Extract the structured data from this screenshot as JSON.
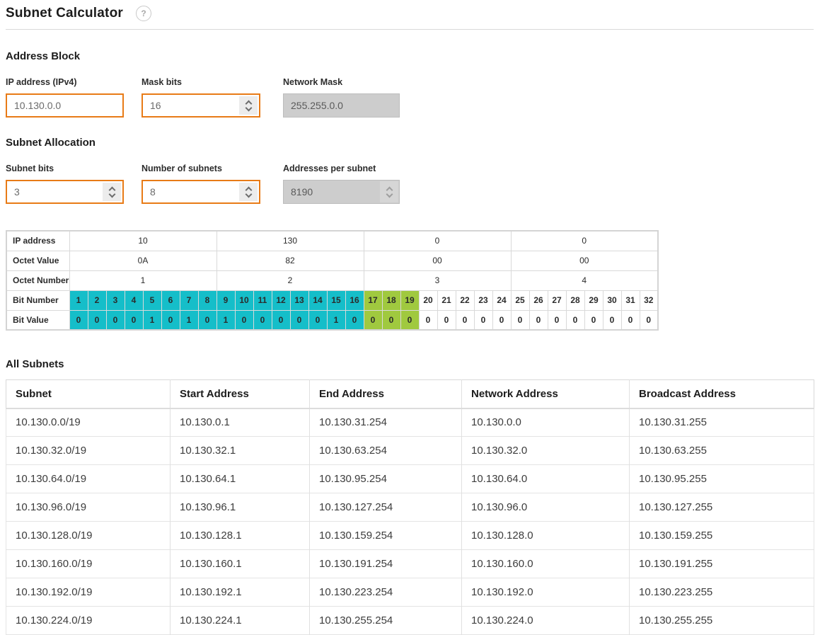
{
  "header": {
    "title": "Subnet Calculator",
    "help_label": "?"
  },
  "colors": {
    "accent_orange": "#e87b17",
    "network_bit_color": "#15bec9",
    "subnet_bit_color": "#a0c93f",
    "disabled_bg": "#cdcdcd"
  },
  "address_block": {
    "heading": "Address Block",
    "ip_field": {
      "label": "IP address (IPv4)",
      "value": "10.130.0.0",
      "disabled": false,
      "spinner": false
    },
    "mask_field": {
      "label": "Mask bits",
      "value": "16",
      "disabled": false,
      "spinner": true
    },
    "netmask_field": {
      "label": "Network Mask",
      "value": "255.255.0.0",
      "disabled": true,
      "spinner": false
    }
  },
  "subnet_allocation": {
    "heading": "Subnet Allocation",
    "subnet_bits_field": {
      "label": "Subnet bits",
      "value": "3",
      "disabled": false,
      "spinner": true
    },
    "num_subnets_field": {
      "label": "Number of subnets",
      "value": "8",
      "disabled": false,
      "spinner": true
    },
    "addresses_field": {
      "label": "Addresses per subnet",
      "value": "8190",
      "disabled": true,
      "spinner": true
    }
  },
  "bit_table": {
    "row_labels": [
      "IP address",
      "Octet Value",
      "Octet Number",
      "Bit Number",
      "Bit Value"
    ],
    "octet_decimal": [
      "10",
      "130",
      "0",
      "0"
    ],
    "octet_hex": [
      "0A",
      "82",
      "00",
      "00"
    ],
    "octet_numbers": [
      "1",
      "2",
      "3",
      "4"
    ],
    "bit_numbers": [
      1,
      2,
      3,
      4,
      5,
      6,
      7,
      8,
      9,
      10,
      11,
      12,
      13,
      14,
      15,
      16,
      17,
      18,
      19,
      20,
      21,
      22,
      23,
      24,
      25,
      26,
      27,
      28,
      29,
      30,
      31,
      32
    ],
    "bit_values": [
      0,
      0,
      0,
      0,
      1,
      0,
      1,
      0,
      1,
      0,
      0,
      0,
      0,
      0,
      1,
      0,
      0,
      0,
      0,
      0,
      0,
      0,
      0,
      0,
      0,
      0,
      0,
      0,
      0,
      0,
      0,
      0
    ],
    "network_bits": 16,
    "subnet_bits_through": 19
  },
  "all_subnets": {
    "heading": "All Subnets",
    "columns": [
      "Subnet",
      "Start Address",
      "End Address",
      "Network Address",
      "Broadcast Address"
    ],
    "rows": [
      [
        "10.130.0.0/19",
        "10.130.0.1",
        "10.130.31.254",
        "10.130.0.0",
        "10.130.31.255"
      ],
      [
        "10.130.32.0/19",
        "10.130.32.1",
        "10.130.63.254",
        "10.130.32.0",
        "10.130.63.255"
      ],
      [
        "10.130.64.0/19",
        "10.130.64.1",
        "10.130.95.254",
        "10.130.64.0",
        "10.130.95.255"
      ],
      [
        "10.130.96.0/19",
        "10.130.96.1",
        "10.130.127.254",
        "10.130.96.0",
        "10.130.127.255"
      ],
      [
        "10.130.128.0/19",
        "10.130.128.1",
        "10.130.159.254",
        "10.130.128.0",
        "10.130.159.255"
      ],
      [
        "10.130.160.0/19",
        "10.130.160.1",
        "10.130.191.254",
        "10.130.160.0",
        "10.130.191.255"
      ],
      [
        "10.130.192.0/19",
        "10.130.192.1",
        "10.130.223.254",
        "10.130.192.0",
        "10.130.223.255"
      ],
      [
        "10.130.224.0/19",
        "10.130.224.1",
        "10.130.255.254",
        "10.130.224.0",
        "10.130.255.255"
      ]
    ]
  }
}
